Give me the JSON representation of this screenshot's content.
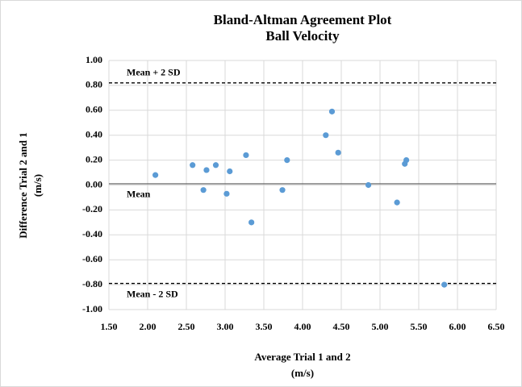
{
  "chart_data": {
    "type": "scatter",
    "title": [
      "Bland-Altman Agreement Plot",
      "Ball Velocity"
    ],
    "x_label": [
      "Average Trial 1 and 2",
      "(m/s)"
    ],
    "y_label": [
      "Difference Trial 2 and 1",
      "(m/s)"
    ],
    "color": "#5b9bd5",
    "x": [
      2.1,
      2.58,
      2.72,
      2.76,
      2.88,
      3.02,
      3.06,
      3.27,
      3.34,
      3.74,
      3.8,
      4.3,
      4.38,
      4.46,
      4.85,
      5.22,
      5.32,
      5.34,
      5.83
    ],
    "values": [
      0.08,
      0.16,
      -0.04,
      0.12,
      0.16,
      -0.07,
      0.11,
      0.24,
      -0.3,
      -0.04,
      0.2,
      0.4,
      0.59,
      0.26,
      0.0,
      -0.14,
      0.17,
      0.2,
      -0.8
    ],
    "reference_lines": [
      {
        "label": "Mean + 2 SD",
        "value": 0.82,
        "style": "dashed"
      },
      {
        "label": "Mean",
        "value": 0.01,
        "style": "solid"
      },
      {
        "label": "Mean - 2 SD",
        "value": -0.79,
        "style": "dashed"
      }
    ],
    "xlim": [
      1.5,
      6.5
    ],
    "xticks": [
      {
        "value": 1.5,
        "label": "1.50"
      },
      {
        "value": 2,
        "label": "2.00"
      },
      {
        "value": 2.5,
        "label": "2.50"
      },
      {
        "value": 3,
        "label": "3.00"
      },
      {
        "value": 3.5,
        "label": "3.50"
      },
      {
        "value": 4,
        "label": "4.00"
      },
      {
        "value": 4.5,
        "label": "4.50"
      },
      {
        "value": 5,
        "label": "5.00"
      },
      {
        "value": 5.5,
        "label": "5.50"
      },
      {
        "value": 6,
        "label": "6.00"
      },
      {
        "value": 6.5,
        "label": "6.50"
      }
    ],
    "ylim": [
      -1,
      1
    ],
    "yticks": [
      {
        "value": -1,
        "label": "-1.00"
      },
      {
        "value": -0.8,
        "label": "-0.80"
      },
      {
        "value": -0.6,
        "label": "-0.60"
      },
      {
        "value": -0.4,
        "label": "-0.40"
      },
      {
        "value": -0.2,
        "label": "-0.20"
      },
      {
        "value": 0,
        "label": "0.00"
      },
      {
        "value": 0.2,
        "label": "0.20"
      },
      {
        "value": 0.4,
        "label": "0.40"
      },
      {
        "value": 0.6,
        "label": "0.60"
      },
      {
        "value": 0.8,
        "label": "0.80"
      },
      {
        "value": 1,
        "label": "1.00"
      }
    ],
    "grid": true
  }
}
